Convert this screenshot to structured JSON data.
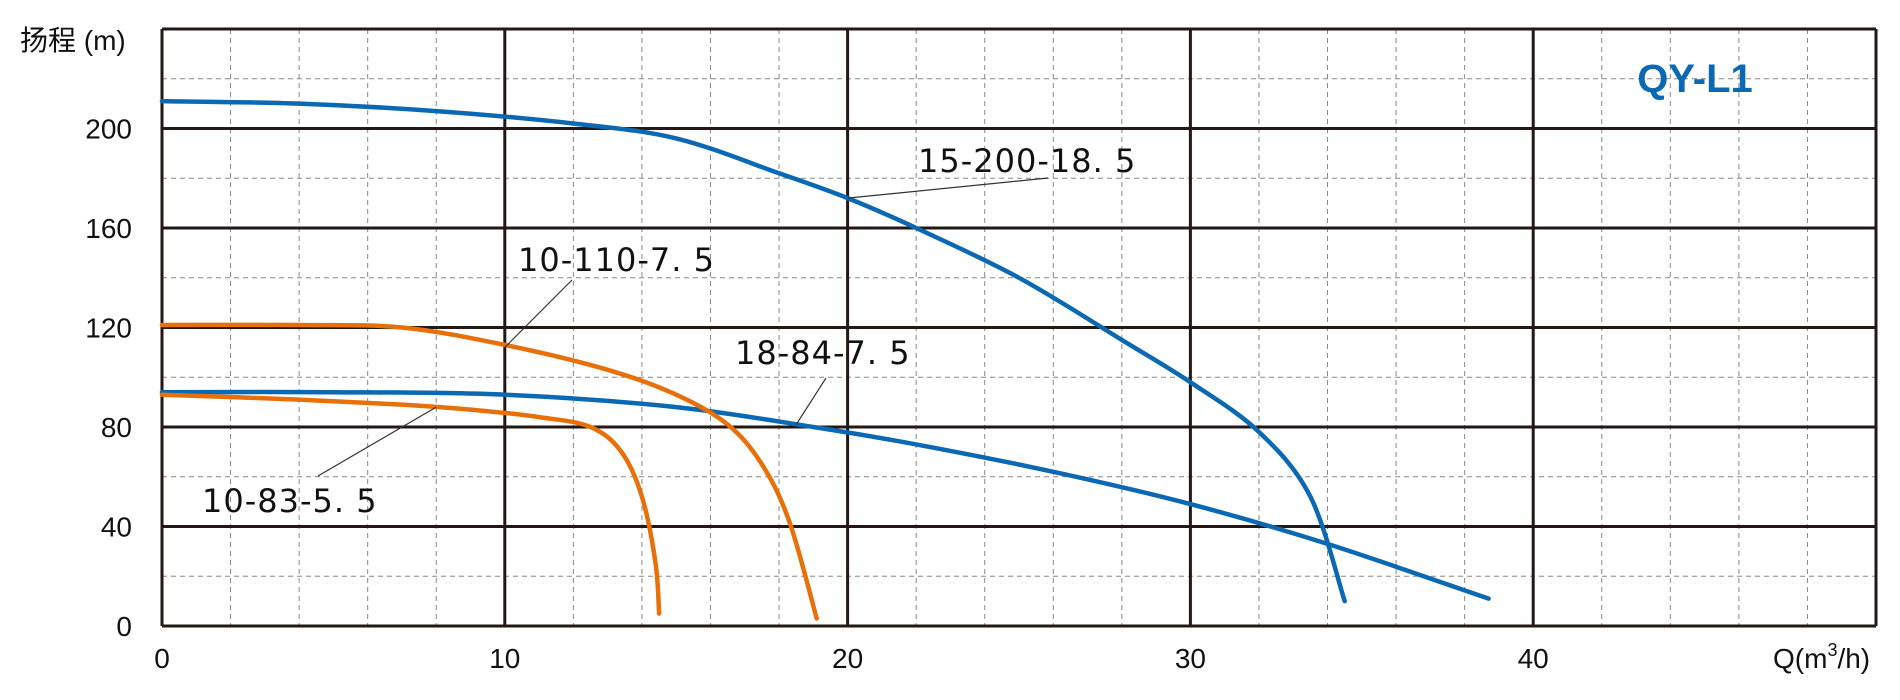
{
  "chart_data": {
    "type": "line",
    "title": "QY-L1",
    "title_color": "#0b68b3",
    "ylabel": "扬程 (m)",
    "xlabel_base": "Q(m",
    "xlabel_sup": "3",
    "xlabel_end": "/h)",
    "xlim": [
      0,
      50
    ],
    "ylim": [
      0,
      240
    ],
    "x_ticks": [
      0,
      10,
      20,
      30,
      40
    ],
    "y_ticks": [
      0,
      40,
      80,
      120,
      160,
      200
    ],
    "grid": true,
    "series": [
      {
        "name": "15-200-18. 5",
        "color": "#0b68b3",
        "points": [
          [
            0,
            211
          ],
          [
            4,
            210
          ],
          [
            8,
            207
          ],
          [
            12,
            202
          ],
          [
            15,
            196
          ],
          [
            18,
            182
          ],
          [
            20,
            172
          ],
          [
            22,
            160
          ],
          [
            25,
            140
          ],
          [
            28,
            115
          ],
          [
            30,
            98
          ],
          [
            32,
            78
          ],
          [
            33.5,
            52
          ],
          [
            34.5,
            10
          ]
        ]
      },
      {
        "name": "18-84-7. 5",
        "color": "#0b68b3",
        "points": [
          [
            0,
            94
          ],
          [
            5,
            94
          ],
          [
            10,
            93
          ],
          [
            15,
            88
          ],
          [
            19,
            80
          ],
          [
            22,
            73
          ],
          [
            26,
            62
          ],
          [
            30,
            49
          ],
          [
            34,
            33
          ],
          [
            38.7,
            11
          ]
        ]
      },
      {
        "name": "10-110-7. 5",
        "color": "#e8700a",
        "points": [
          [
            0,
            121
          ],
          [
            4,
            121
          ],
          [
            7,
            120
          ],
          [
            10,
            113
          ],
          [
            13,
            103
          ],
          [
            15,
            93
          ],
          [
            16.5,
            81
          ],
          [
            17.5,
            65
          ],
          [
            18.3,
            42
          ],
          [
            19.1,
            3
          ]
        ]
      },
      {
        "name": "10-83-5. 5",
        "color": "#e8700a",
        "points": [
          [
            0,
            93
          ],
          [
            4,
            91
          ],
          [
            7,
            89
          ],
          [
            9,
            87
          ],
          [
            11,
            84
          ],
          [
            12.5,
            80
          ],
          [
            13.4,
            70
          ],
          [
            14,
            52
          ],
          [
            14.4,
            25
          ],
          [
            14.5,
            5
          ]
        ]
      }
    ],
    "annotations": [
      {
        "text": "15-200-18. 5",
        "series": 0,
        "at_x": 20,
        "at_y": 172
      },
      {
        "text": "10-110-7. 5",
        "series": 2,
        "at_x": 10,
        "at_y": 112
      },
      {
        "text": "18-84-7. 5",
        "series": 1,
        "at_x": 18.5,
        "at_y": 81
      },
      {
        "text": "10-83-5. 5",
        "series": 3,
        "at_x": 8,
        "at_y": 88
      }
    ]
  }
}
